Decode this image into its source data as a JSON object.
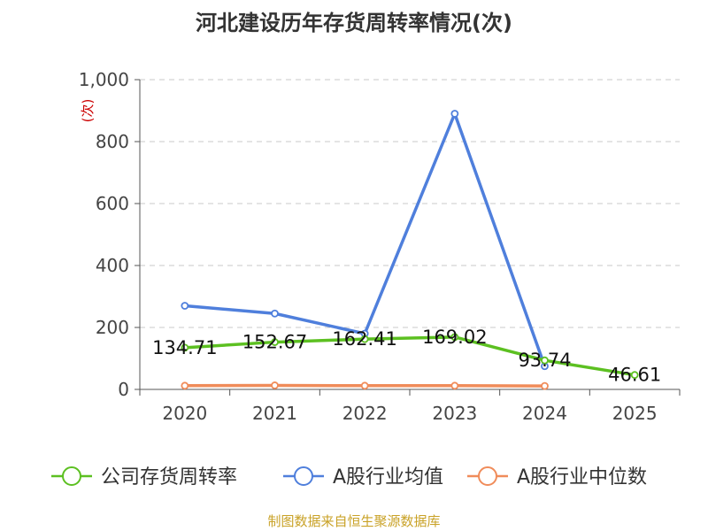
{
  "chart_data": {
    "type": "line",
    "title": "河北建设历年存货周转率情况(次)",
    "ylabel": "(次)",
    "xlabel": "",
    "categories": [
      "2020",
      "2021",
      "2022",
      "2023",
      "2024",
      "2025"
    ],
    "ylim": [
      0,
      1000
    ],
    "yticks": [
      0,
      200,
      400,
      600,
      800,
      1000
    ],
    "ytick_labels": [
      "0",
      "200",
      "400",
      "600",
      "800",
      "1,000"
    ],
    "grid": true,
    "legend_position": "bottom",
    "series": [
      {
        "name": "公司存货周转率",
        "color": "#5cc021",
        "values": [
          134.71,
          152.67,
          162.41,
          169.02,
          93.74,
          46.61
        ],
        "labels": [
          "134.71",
          "152.67",
          "162.41",
          "169.02",
          "93.74",
          "46.61"
        ]
      },
      {
        "name": "A股行业均值",
        "color": "#4f7fdc",
        "values": [
          270,
          245,
          180,
          890,
          75,
          null
        ]
      },
      {
        "name": "A股行业中位数",
        "color": "#f08c5a",
        "values": [
          12,
          13,
          12,
          12,
          11,
          null
        ]
      }
    ]
  },
  "source": "制图数据来自恒生聚源数据库"
}
